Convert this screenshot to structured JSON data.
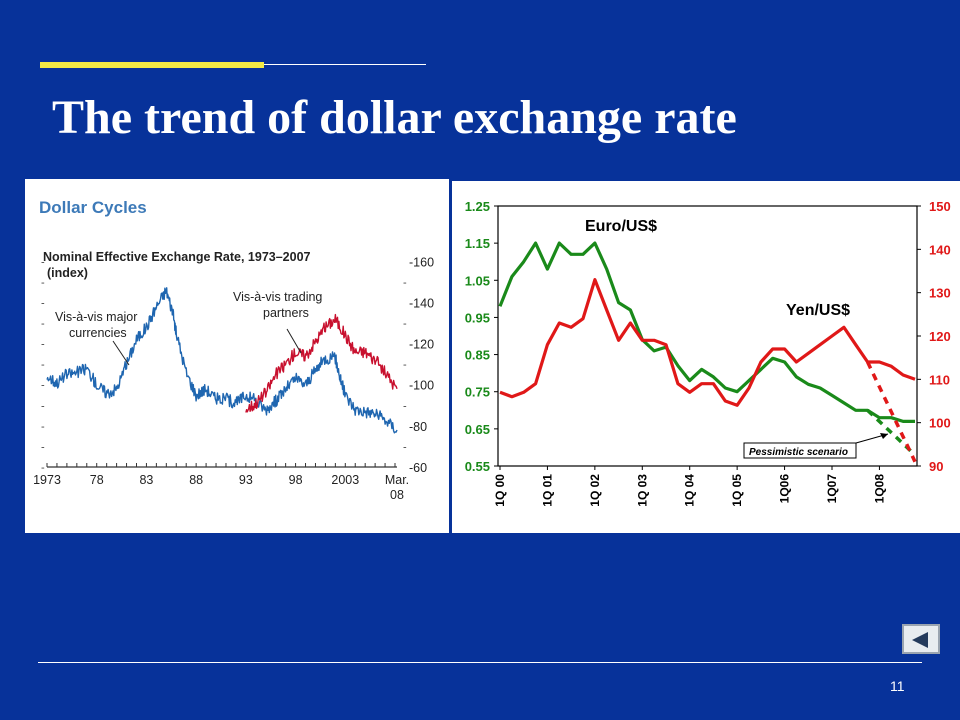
{
  "slide": {
    "title": "The trend of dollar exchange rate",
    "page_number": "11",
    "nav_icon": "back-arrow-icon",
    "accent_color": "#f2ea45",
    "background_color": "#07329a"
  },
  "chart_data": [
    {
      "type": "line",
      "title": "Dollar Cycles",
      "subtitle": "Nominal Effective Exchange Rate, 1973–2007",
      "ylabel": "(index)",
      "x_ticks": [
        "1973",
        "78",
        "83",
        "88",
        "93",
        "98",
        "2003",
        "Mar.\n08"
      ],
      "xlim": [
        1973,
        2008.2
      ],
      "ylim": [
        60,
        165
      ],
      "y_ticks": [
        60,
        80,
        100,
        120,
        140,
        160
      ],
      "grid": false,
      "annotations": [
        "Vis-à-vis major currencies",
        "Vis-à-vis trading partners"
      ],
      "series": [
        {
          "name": "Vis-à-vis major currencies",
          "color": "#1f66b0",
          "x": [
            1973,
            1974,
            1975,
            1976,
            1977,
            1978,
            1979,
            1980,
            1981,
            1982,
            1983,
            1984,
            1985,
            1985.6,
            1986,
            1987,
            1988,
            1989,
            1990,
            1991,
            1992,
            1993,
            1994,
            1995,
            1996,
            1997,
            1998,
            1999,
            2000,
            2001,
            2002,
            2002.5,
            2003,
            2004,
            2005,
            2006,
            2007,
            2008.2
          ],
          "y": [
            104,
            101,
            105,
            106,
            108,
            100,
            96,
            98,
            110,
            122,
            128,
            138,
            146,
            136,
            125,
            106,
            95,
            98,
            93,
            93,
            91,
            95,
            92,
            88,
            92,
            98,
            103,
            100,
            107,
            113,
            113,
            103,
            95,
            88,
            87,
            86,
            83,
            78
          ]
        },
        {
          "name": "Vis-à-vis trading partners",
          "color": "#c8102e",
          "x": [
            1993,
            1994,
            1995,
            1996,
            1997,
            1998,
            1999,
            2000,
            2001,
            2002,
            2003,
            2004,
            2005,
            2006,
            2007,
            2008.2
          ],
          "y": [
            88,
            91,
            96,
            105,
            110,
            116,
            114,
            121,
            128,
            132,
            124,
            116,
            116,
            112,
            106,
            98
          ]
        }
      ]
    },
    {
      "type": "line",
      "categories": [
        "1Q 00",
        "1Q 01",
        "1Q 02",
        "1Q 03",
        "1Q 04",
        "1Q 05",
        "1Q06",
        "1Q07",
        "1Q08"
      ],
      "y_left": {
        "range": [
          0.55,
          1.25
        ],
        "ticks": [
          "0.55",
          "0.65",
          "0.75",
          "0.85",
          "0.95",
          "1.05",
          "1.15",
          "1.25"
        ]
      },
      "y_right": {
        "range": [
          90,
          150
        ],
        "ticks": [
          "90",
          "100",
          "110",
          "120",
          "130",
          "140",
          "150"
        ]
      },
      "grid": false,
      "annotation_box": "Pessimistic scenario",
      "series": [
        {
          "name": "Euro/US$",
          "axis": "left",
          "color": "#1a8a1a",
          "x": [
            0,
            0.25,
            0.5,
            0.75,
            1,
            1.25,
            1.5,
            1.75,
            2,
            2.25,
            2.5,
            2.75,
            3,
            3.25,
            3.5,
            3.75,
            4,
            4.25,
            4.5,
            4.75,
            5,
            5.25,
            5.5,
            5.75,
            6,
            6.25,
            6.5,
            6.75,
            7,
            7.25,
            7.5,
            7.75,
            8,
            8.25,
            8.5,
            8.75
          ],
          "y": [
            0.98,
            1.06,
            1.1,
            1.15,
            1.08,
            1.15,
            1.12,
            1.12,
            1.15,
            1.08,
            0.99,
            0.97,
            0.89,
            0.86,
            0.87,
            0.82,
            0.78,
            0.81,
            0.79,
            0.76,
            0.75,
            0.78,
            0.81,
            0.84,
            0.83,
            0.79,
            0.77,
            0.76,
            0.74,
            0.72,
            0.7,
            0.7,
            0.68,
            0.68,
            0.67,
            0.67
          ]
        },
        {
          "name": "Yen/US$",
          "axis": "right",
          "color": "#e01818",
          "x": [
            0,
            0.25,
            0.5,
            0.75,
            1,
            1.25,
            1.5,
            1.75,
            2,
            2.25,
            2.5,
            2.75,
            3,
            3.25,
            3.5,
            3.75,
            4,
            4.25,
            4.5,
            4.75,
            5,
            5.25,
            5.5,
            5.75,
            6,
            6.25,
            6.5,
            6.75,
            7,
            7.25,
            7.5,
            7.75,
            8,
            8.25,
            8.5,
            8.75
          ],
          "y": [
            107,
            106,
            107,
            109,
            118,
            123,
            122,
            124,
            133,
            126,
            119,
            123,
            119,
            119,
            118,
            109,
            107,
            109,
            109,
            105,
            104,
            108,
            114,
            117,
            117,
            114,
            116,
            118,
            120,
            122,
            118,
            114,
            114,
            113,
            111,
            110
          ]
        },
        {
          "name": "Euro/US$ pessimistic scenario",
          "axis": "left",
          "color": "#1a8a1a",
          "dashed": true,
          "x": [
            7.75,
            8.75
          ],
          "y": [
            0.7,
            0.58
          ]
        },
        {
          "name": "Yen/US$ pessimistic scenario",
          "axis": "right",
          "color": "#e01818",
          "dashed": true,
          "x": [
            7.75,
            8.75
          ],
          "y": [
            114,
            91
          ]
        }
      ],
      "labels": {
        "euro": "Euro/US$",
        "yen": "Yen/US$"
      }
    }
  ]
}
